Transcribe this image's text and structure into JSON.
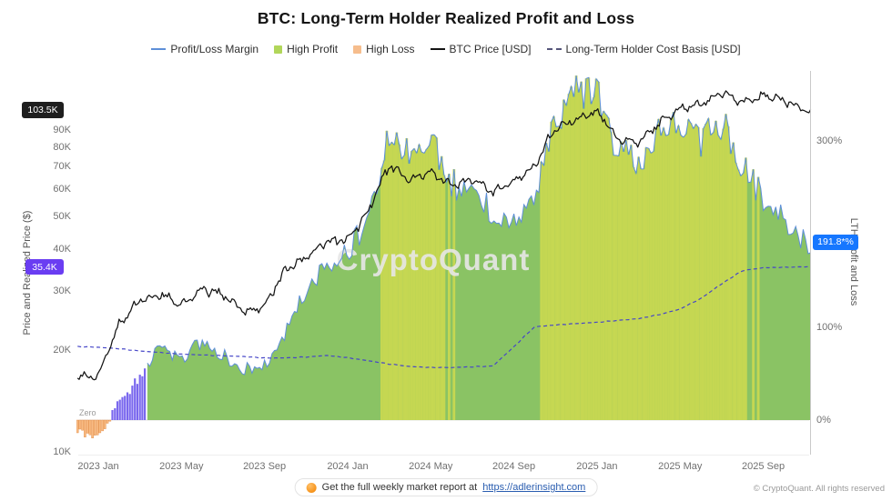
{
  "title": "BTC: Long-Term Holder Realized Profit and Loss",
  "legend": [
    {
      "label": "Profit/Loss Margin",
      "type": "line",
      "color": "#5e8fd8"
    },
    {
      "label": "High Profit",
      "type": "square",
      "color": "#b1d65a"
    },
    {
      "label": "High Loss",
      "type": "square",
      "color": "#f6bd8d"
    },
    {
      "label": "BTC Price [USD]",
      "type": "line",
      "color": "#141414"
    },
    {
      "label": "Long-Term Holder Cost Basis [USD]",
      "type": "dashed",
      "color": "#55557a"
    }
  ],
  "left_axis": {
    "label": "Price and Realized Price ($)",
    "ticks": [
      {
        "label": "90K",
        "value": 90
      },
      {
        "label": "80K",
        "value": 80
      },
      {
        "label": "70K",
        "value": 70
      },
      {
        "label": "60K",
        "value": 60
      },
      {
        "label": "50K",
        "value": 50
      },
      {
        "label": "40K",
        "value": 40
      },
      {
        "label": "30K",
        "value": 30
      },
      {
        "label": "20K",
        "value": 20
      },
      {
        "label": "10K",
        "value": 10
      }
    ],
    "badge": {
      "label": "103.5K",
      "value": 103.5,
      "bg": "#1e1e1e"
    },
    "cost_badge": {
      "label": "35.4K",
      "value": 35.4,
      "bg": "#6a3df2"
    }
  },
  "right_axis": {
    "label": "LTH Profit and Loss",
    "ticks": [
      {
        "label": "300%",
        "value": 300
      },
      {
        "label": "100%",
        "value": 100
      },
      {
        "label": "0%",
        "value": 0
      }
    ],
    "badge": {
      "label": "191.8*%",
      "value": 191.8,
      "bg": "#1677ff"
    }
  },
  "x_axis": {
    "ticks": [
      {
        "label": "2023 Jan",
        "m": 0
      },
      {
        "label": "2023 May",
        "m": 4
      },
      {
        "label": "2023 Sep",
        "m": 8
      },
      {
        "label": "2024 Jan",
        "m": 12
      },
      {
        "label": "2024 May",
        "m": 16
      },
      {
        "label": "2024 Sep",
        "m": 20
      },
      {
        "label": "2025 Jan",
        "m": 24
      },
      {
        "label": "2025 May",
        "m": 28
      },
      {
        "label": "2025 Sep",
        "m": 32
      }
    ]
  },
  "annotations": {
    "zero_label": "Zero",
    "watermark": "CryptoQuant"
  },
  "footer": {
    "report_text": "Get the full weekly market report at",
    "report_link": "https://adlerinsight.com",
    "copyright": "© CryptoQuant. All rights reserved"
  },
  "chart_data": {
    "type": "composite (area + bars + lines)",
    "x_months": [
      "2022-12",
      "2023-01",
      "2023-02",
      "2023-03",
      "2023-04",
      "2023-05",
      "2023-06",
      "2023-07",
      "2023-08",
      "2023-09",
      "2023-10",
      "2023-11",
      "2023-12",
      "2024-01",
      "2024-02",
      "2024-03",
      "2024-04",
      "2024-05",
      "2024-06",
      "2024-07",
      "2024-08",
      "2024-09",
      "2024-10",
      "2024-11",
      "2024-12",
      "2025-01",
      "2025-02",
      "2025-03",
      "2025-04",
      "2025-05",
      "2025-06",
      "2025-07",
      "2025-08",
      "2025-09",
      "2025-10",
      "2025-11"
    ],
    "x_index_of_2023_jan": 1,
    "axes": {
      "left": {
        "scale": "log",
        "unit": "K USD",
        "ticks": [
          10,
          20,
          30,
          40,
          50,
          60,
          70,
          80,
          90
        ]
      },
      "right": {
        "scale": "linear",
        "unit": "%",
        "ticks": [
          0,
          100,
          300
        ]
      }
    },
    "current": {
      "btc_price": "103.5K",
      "lth_cost_basis": "35.4K",
      "lth_profit_margin": "191.8*%"
    },
    "series": {
      "btc_price": {
        "name": "BTC Price [USD]",
        "axis": "left",
        "type": "line",
        "color": "#141414",
        "values": [
          16.8,
          16.6,
          23.7,
          28.0,
          29.2,
          27.2,
          30.4,
          29.2,
          26.1,
          26.9,
          34.6,
          37.7,
          42.2,
          42.5,
          51.5,
          70.8,
          63.8,
          67.5,
          61.8,
          64.6,
          59.0,
          63.3,
          70.2,
          91.0,
          96.4,
          102.1,
          84.4,
          82.5,
          94.2,
          104.6,
          107.2,
          116.5,
          108.2,
          114.0,
          110.1,
          103.5
        ]
      },
      "cost_basis": {
        "name": "Long-Term Holder Cost Basis [USD]",
        "axis": "left",
        "type": "dashed-line",
        "color": "#4646c8",
        "values": [
          20.5,
          20.4,
          20.2,
          19.9,
          19.7,
          19.5,
          19.4,
          19.3,
          19.2,
          19.0,
          19.0,
          19.1,
          19.3,
          19.0,
          18.6,
          18.2,
          17.9,
          17.8,
          17.8,
          17.9,
          18.0,
          20.5,
          23.5,
          23.8,
          24.0,
          24.2,
          24.5,
          24.8,
          25.5,
          26.5,
          28.5,
          31.5,
          34.5,
          35.2,
          35.3,
          35.4
        ]
      },
      "margin": {
        "name": "Profit/Loss Margin",
        "axis": "right",
        "type": "area-line",
        "color": "#5e8fd8",
        "area_color": "#84c05c",
        "high_profit_color": "#cbd950",
        "high_profit_threshold": 258,
        "loss_color": "#f8bb83",
        "loss_stroke": "#e2873f",
        "early_bar_color": "#7a68ee",
        "values": [
          -12,
          -19,
          20,
          45,
          80,
          65,
          85,
          70,
          55,
          60,
          95,
          140,
          165,
          180,
          215,
          310,
          280,
          300,
          255,
          245,
          225,
          215,
          240,
          320,
          355,
          350,
          290,
          280,
          310,
          320,
          300,
          320,
          270,
          240,
          215,
          192
        ]
      }
    }
  }
}
